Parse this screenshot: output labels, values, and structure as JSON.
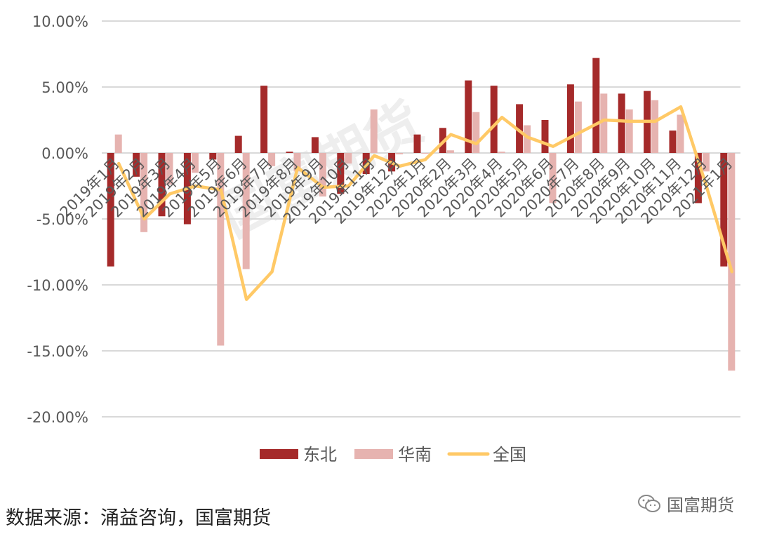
{
  "chart_data": {
    "type": "bar",
    "categories": [
      "2019年1月",
      "2019年2月",
      "2019年3月",
      "2019年4月",
      "2019年5月",
      "2019年6月",
      "2019年7月",
      "2019年8月",
      "2019年9月",
      "2019年10月",
      "2019年11月",
      "2019年12月",
      "2020年1月",
      "2020年2月",
      "2020年3月",
      "2020年4月",
      "2020年5月",
      "2020年6月",
      "2020年7月",
      "2020年8月",
      "2020年9月",
      "2020年10月",
      "2020年11月",
      "2020年12月",
      "2021年1月"
    ],
    "series": [
      {
        "name": "东北",
        "type": "bar",
        "color": "#a52a2a",
        "values": [
          -8.6,
          -1.8,
          -4.8,
          -5.4,
          -0.5,
          1.3,
          5.1,
          0.1,
          1.2,
          -3.1,
          -1.6,
          -1.4,
          1.4,
          1.9,
          5.5,
          5.1,
          3.7,
          2.5,
          5.2,
          7.2,
          4.5,
          4.7,
          1.7,
          -3.8,
          -8.6
        ]
      },
      {
        "name": "华南",
        "type": "bar",
        "color": "#e6b3b0",
        "values": [
          1.4,
          -6.0,
          -2.4,
          -1.5,
          -14.6,
          -8.8,
          -1.0,
          -1.4,
          -3.3,
          -0.8,
          3.3,
          -0.1,
          0.0,
          0.2,
          3.1,
          0.1,
          2.1,
          -3.8,
          3.9,
          4.5,
          3.3,
          4.0,
          2.9,
          -1.4,
          -16.5
        ]
      },
      {
        "name": "全国",
        "type": "line",
        "color": "#ffc966",
        "values": [
          -0.8,
          -5.0,
          -3.1,
          -2.5,
          -2.8,
          -11.1,
          -9.0,
          -1.1,
          -2.6,
          -2.5,
          -0.2,
          -1.0,
          -0.5,
          1.4,
          0.7,
          2.7,
          1.2,
          0.5,
          1.5,
          2.5,
          2.4,
          2.4,
          3.5,
          -2.5,
          -9.0
        ]
      }
    ],
    "yticks": [
      "10.00%",
      "5.00%",
      "0.00%",
      "-5.00%",
      "-10.00%",
      "-15.00%",
      "-20.00%"
    ],
    "ylim": [
      -20,
      10
    ],
    "grid": true,
    "legend": "bottom",
    "xlabel": "",
    "ylabel": ""
  },
  "watermark": "国富期货",
  "source_text": "数据来源：涌益咨询，国富期货",
  "brand_text": "国富期货"
}
